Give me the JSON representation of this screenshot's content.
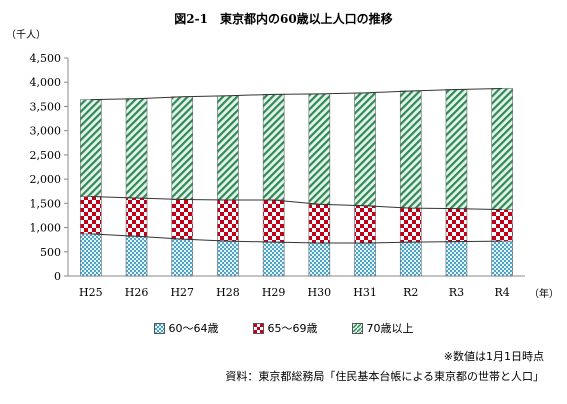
{
  "title": "図2-1　東京都内の60歳以上人口の推移",
  "y_unit_label": "（千人）",
  "x_unit_label": "（年）",
  "note": "※数値は1月1日時点",
  "source": "資料：東京都総務局「住民基本台帳による東京都の世帯と人口」",
  "colors": {
    "age60_64": "#4aa3c8",
    "age65_69": "#c0001a",
    "age70plus": "#2e8b57"
  },
  "chart_data": {
    "type": "bar",
    "stacked": true,
    "categories": [
      "H25",
      "H26",
      "H27",
      "H28",
      "H29",
      "H30",
      "H31",
      "R2",
      "R3",
      "R4"
    ],
    "series": [
      {
        "name": "60～64歳",
        "values": [
          870,
          820,
          760,
          720,
          700,
          680,
          680,
          700,
          710,
          720
        ]
      },
      {
        "name": "65～69歳",
        "values": [
          770,
          790,
          820,
          850,
          870,
          800,
          770,
          700,
          680,
          650
        ]
      },
      {
        "name": "70歳以上",
        "values": [
          2000,
          2050,
          2120,
          2150,
          2180,
          2280,
          2330,
          2420,
          2460,
          2500
        ]
      }
    ],
    "yticks": [
      "0",
      "500",
      "1,000",
      "1,500",
      "2,000",
      "2,500",
      "3,000",
      "3,500",
      "4,000",
      "4,500"
    ],
    "ylim": [
      0,
      4500
    ],
    "grid": false,
    "legend_position": "bottom"
  }
}
